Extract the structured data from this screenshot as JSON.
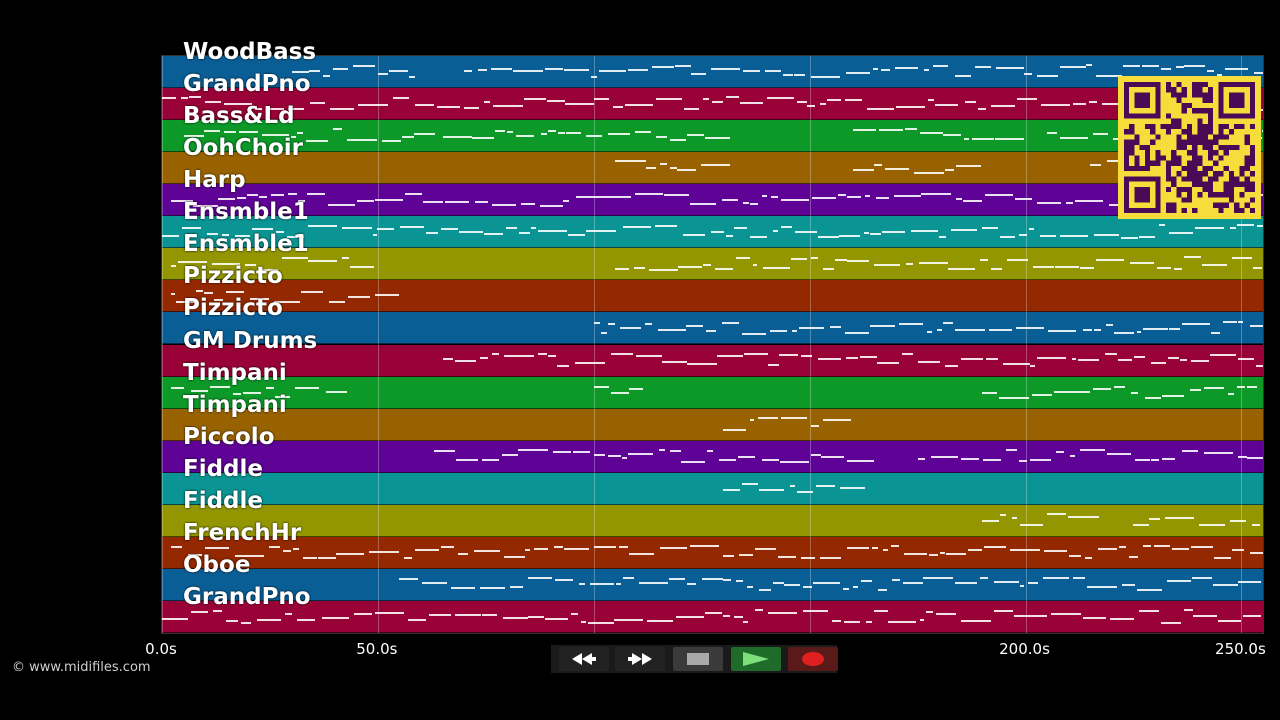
{
  "colors": {
    "background": "#000000",
    "lanes": [
      "#0a5e96",
      "#980237",
      "#0c9928",
      "#986201",
      "#5f0397",
      "#0a9493",
      "#939501",
      "#932801"
    ]
  },
  "tracks": [
    {
      "name": "WoodBass"
    },
    {
      "name": "GrandPno"
    },
    {
      "name": "Bass&Ld"
    },
    {
      "name": "OohChoir"
    },
    {
      "name": "Harp"
    },
    {
      "name": "Ensmble1"
    },
    {
      "name": "Ensmble1"
    },
    {
      "name": "Pizzicto"
    },
    {
      "name": "Pizzicto"
    },
    {
      "name": "GM Drums"
    },
    {
      "name": "Timpani"
    },
    {
      "name": "Timpani"
    },
    {
      "name": "Piccolo"
    },
    {
      "name": "Fiddle"
    },
    {
      "name": "Fiddle"
    },
    {
      "name": "FrenchHr"
    },
    {
      "name": "Oboe"
    },
    {
      "name": "GrandPno"
    }
  ],
  "time_axis": {
    "min": 0,
    "max": 255,
    "ticks": [
      {
        "value": 0,
        "label": "0.0s"
      },
      {
        "value": 50,
        "label": "50.0s"
      },
      {
        "value": 200,
        "label": "200.0s"
      },
      {
        "value": 250,
        "label": "250.0s"
      }
    ],
    "gridlines": [
      0,
      50,
      100,
      150,
      200,
      250
    ]
  },
  "copyright": "© www.midifiles.com",
  "qr_code": {
    "icon": "qr-code-icon",
    "color": "#f7dd3c",
    "module_color": "#4b0a55"
  },
  "transport": {
    "buttons": [
      {
        "name": "rewind-button",
        "icon": "rewind-icon",
        "color": "#222222"
      },
      {
        "name": "fast-forward-button",
        "icon": "fast-forward-icon",
        "color": "#222222"
      },
      {
        "name": "stop-button",
        "icon": "stop-icon",
        "color": "#3a3a3a"
      },
      {
        "name": "play-button",
        "icon": "play-icon",
        "color": "#1f6b2a"
      },
      {
        "name": "record-button",
        "icon": "record-icon",
        "color": "#5a1a1a"
      }
    ]
  }
}
